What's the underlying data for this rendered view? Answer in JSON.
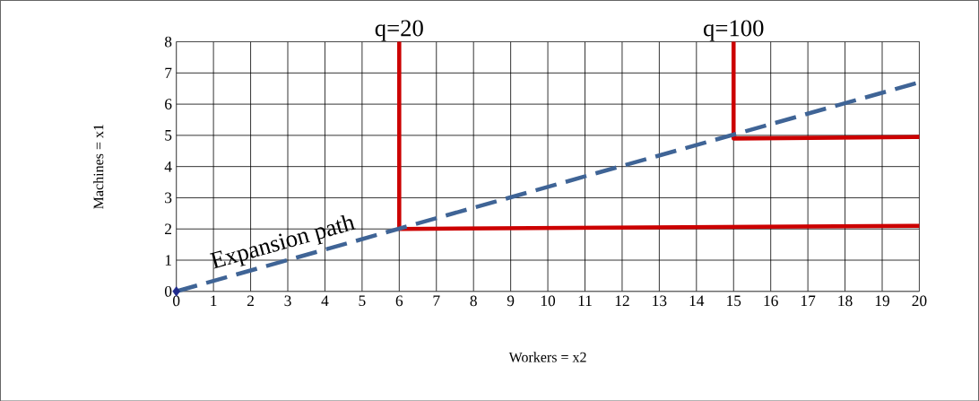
{
  "chart_data": {
    "type": "line",
    "xlabel": "Workers = x2",
    "ylabel": "Machines = x1",
    "xlim": [
      0,
      20
    ],
    "ylim": [
      0,
      8
    ],
    "xticks": [
      0,
      1,
      2,
      3,
      4,
      5,
      6,
      7,
      8,
      9,
      10,
      11,
      12,
      13,
      14,
      15,
      16,
      17,
      18,
      19,
      20
    ],
    "yticks": [
      0,
      1,
      2,
      3,
      4,
      5,
      6,
      7,
      8
    ],
    "grid": true,
    "series": [
      {
        "color": "#cc0000",
        "x": [
          6,
          6,
          20
        ],
        "values": [
          8,
          2,
          2.1
        ],
        "line_style": "solid",
        "marker": "none"
      },
      {
        "color": "#cc0000",
        "x": [
          15,
          15,
          20
        ],
        "values": [
          8,
          4.9,
          4.95
        ],
        "line_style": "solid",
        "marker": "none"
      },
      {
        "color": "#3f6496",
        "x": [
          0,
          20
        ],
        "values": [
          0,
          6.7
        ],
        "line_style": "dashed",
        "marker": "none"
      },
      {
        "type": "scatter",
        "color": "#1f2a8c",
        "x": [
          0
        ],
        "values": [
          0
        ],
        "marker": "diamond"
      }
    ],
    "annotations": [
      {
        "text": "q=20",
        "x": 6,
        "y": 8
      },
      {
        "text": "q=100",
        "x": 15,
        "y": 8
      },
      {
        "text": "Expansion path",
        "x": 3,
        "y": 1.0
      }
    ]
  }
}
